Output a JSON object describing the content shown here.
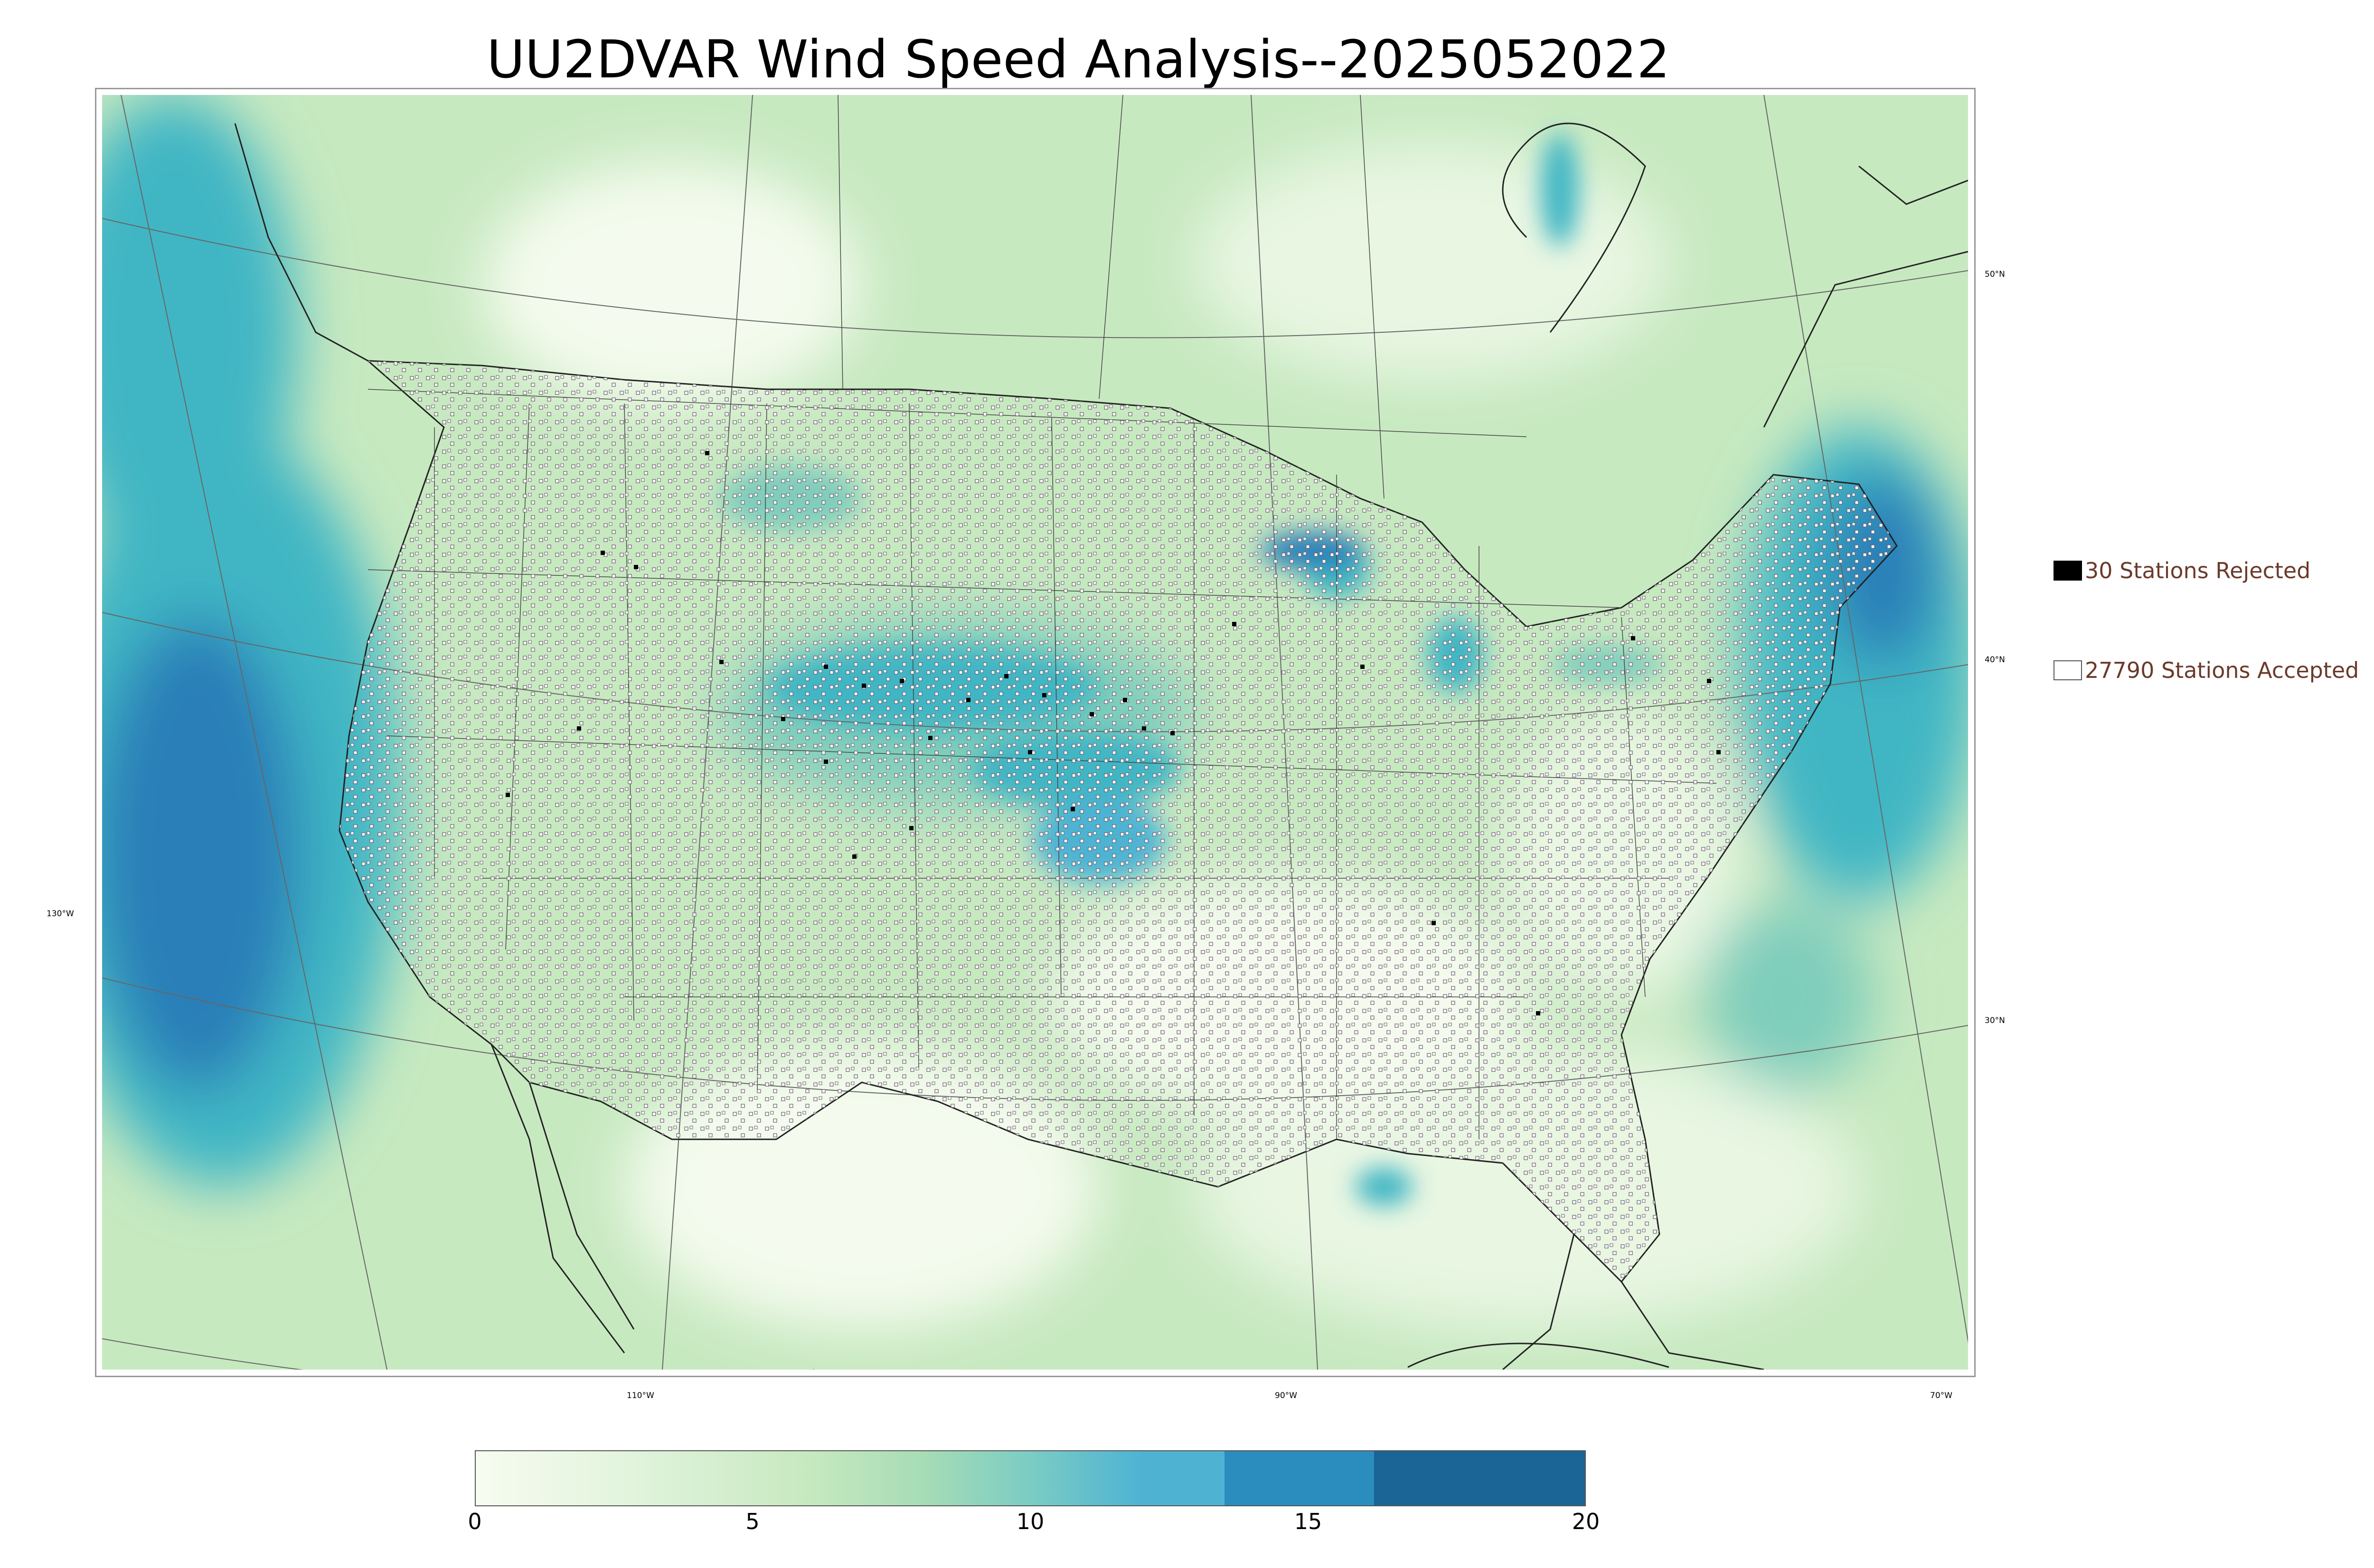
{
  "title": "UU2DVAR Wind Speed Analysis--2025052022",
  "map": {
    "latitude_labels": [
      "50°N",
      "40°N",
      "30°N"
    ],
    "longitude_labels": [
      "130°W",
      "110°W",
      "90°W",
      "70°W"
    ],
    "field": "wind speed",
    "colors": {
      "calm": "#f4fbee",
      "light": "#c7e9c0",
      "moderate": "#7fcdbb",
      "strong": "#41b6c4",
      "very_strong": "#2c7fb8",
      "land_lines": "#333333"
    }
  },
  "legend": {
    "rejected": {
      "label": "30 Stations Rejected",
      "color": "#000000"
    },
    "accepted": {
      "label": "27790 Stations Accepted",
      "color": "#ffffff"
    }
  },
  "colorbar": {
    "ticks": [
      "0",
      "5",
      "10",
      "15",
      "20"
    ],
    "range": [
      0,
      20
    ],
    "stops": [
      {
        "value": 0,
        "color": "#f7fcf0"
      },
      {
        "value": 3,
        "color": "#e0f3db"
      },
      {
        "value": 6,
        "color": "#c7e9c0"
      },
      {
        "value": 8,
        "color": "#a8ddb5"
      },
      {
        "value": 10,
        "color": "#7bccc4"
      },
      {
        "value": 12,
        "color": "#4eb3d3"
      },
      {
        "value": 13.5,
        "color": "#4eb3d3"
      },
      {
        "value": 13.5,
        "color": "#2b8cbe"
      },
      {
        "value": 16.2,
        "color": "#2b8cbe"
      },
      {
        "value": 16.2,
        "color": "#1b6496"
      },
      {
        "value": 20,
        "color": "#1b6496"
      }
    ]
  }
}
